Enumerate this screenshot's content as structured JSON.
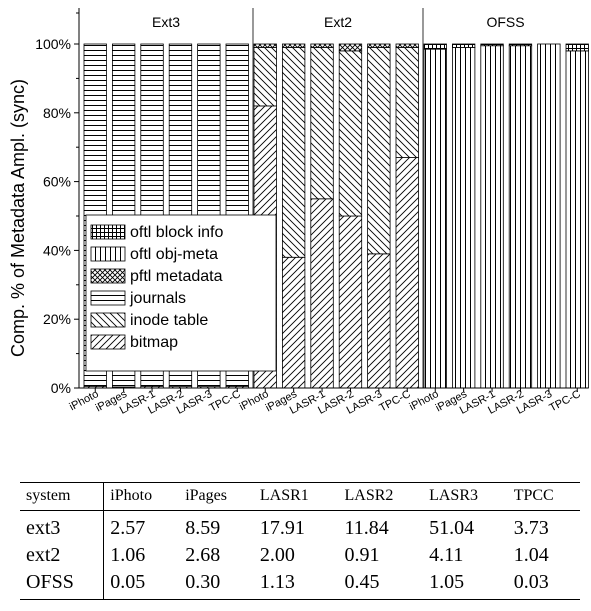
{
  "chart_data": {
    "type": "bar",
    "stacked": true,
    "normalized": true,
    "ylabel": "Comp. % of Metadata Ampl. (sync)",
    "yticks": [
      "0%",
      "20%",
      "40%",
      "60%",
      "80%",
      "100%"
    ],
    "ylim": [
      0,
      100
    ],
    "legend_position": "lower-left (inside Ext3 panel)",
    "legend_order": [
      "oftl block info",
      "oftl obj-meta",
      "pftl metadata",
      "journals",
      "inode table",
      "bitmap"
    ],
    "groups": [
      {
        "title": "Ext3",
        "categories": [
          "iPhoto",
          "iPages",
          "LASR-1",
          "LASR-2",
          "LASR-3",
          "TPC-C"
        ],
        "series": [
          {
            "name": "bitmap",
            "values": [
              0.5,
              0.3,
              0.5,
              0.4,
              0.4,
              0.5
            ]
          },
          {
            "name": "inode table",
            "values": [
              0,
              0,
              0,
              0,
              0,
              0
            ]
          },
          {
            "name": "journals",
            "values": [
              99.5,
              99.7,
              99.5,
              99.6,
              99.6,
              99.5
            ]
          }
        ]
      },
      {
        "title": "Ext2",
        "categories": [
          "iPhoto",
          "iPages",
          "LASR-1",
          "LASR-2",
          "LASR-3",
          "TPC-C"
        ],
        "series": [
          {
            "name": "bitmap",
            "values": [
              82,
              38,
              55,
              50,
              39,
              67
            ]
          },
          {
            "name": "inode table",
            "values": [
              17,
              61,
              44,
              48,
              60,
              32
            ]
          },
          {
            "name": "pftl metadata",
            "values": [
              1,
              1,
              1,
              2,
              1,
              1
            ]
          }
        ]
      },
      {
        "title": "OFSS",
        "categories": [
          "iPhoto",
          "iPages",
          "LASR-1",
          "LASR-2",
          "LASR-3",
          "TPC-C"
        ],
        "series": [
          {
            "name": "oftl obj-meta",
            "values": [
              98.5,
              99,
              99.5,
              99.5,
              100,
              98
            ]
          },
          {
            "name": "oftl block info",
            "values": [
              1.5,
              1,
              0.5,
              0.5,
              0,
              2
            ]
          }
        ]
      }
    ]
  },
  "table": {
    "headers": [
      "system",
      "iPhoto",
      "iPages",
      "LASR1",
      "LASR2",
      "LASR3",
      "TPCC"
    ],
    "rows": [
      [
        "ext3",
        "2.57",
        "8.59",
        "17.91",
        "11.84",
        "51.04",
        "3.73"
      ],
      [
        "ext2",
        "1.06",
        "2.68",
        "2.00",
        "0.91",
        "4.11",
        "1.04"
      ],
      [
        "OFSS",
        "0.05",
        "0.30",
        "1.13",
        "0.45",
        "1.05",
        "0.03"
      ]
    ]
  }
}
